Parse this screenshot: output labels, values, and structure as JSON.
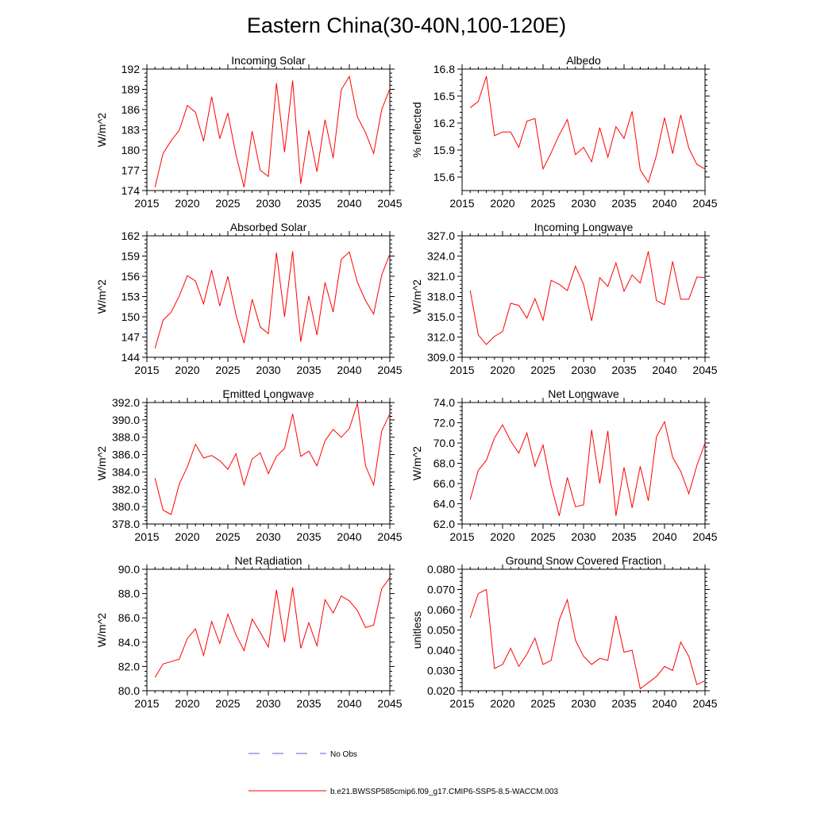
{
  "figure_title": "Eastern China(30-40N,100-120E)",
  "legend": {
    "obs_label": "No Obs",
    "obs_color": "#5566cc",
    "model_label": "b.e21.BWSSP585cmip6.f09_g17.CMIP6-SSP5-8.5-WACCM.003",
    "model_color": "#ff0000"
  },
  "chart_data": [
    {
      "type": "line",
      "title": "Incoming Solar",
      "xlabel": "",
      "ylabel": "W/m^2",
      "xlim": [
        2015,
        2045
      ],
      "ylim": [
        174,
        192
      ],
      "xticks": [
        2015,
        2020,
        2025,
        2030,
        2035,
        2040,
        2045
      ],
      "xticklabels": [
        "2015",
        "2020",
        "2025",
        "2030",
        "2035",
        "2040",
        "2045"
      ],
      "yticks": [
        174,
        177,
        180,
        183,
        186,
        189,
        192
      ],
      "yticklabels": [
        "174",
        "177",
        "180",
        "183",
        "186",
        "189",
        "192"
      ],
      "x": [
        2016,
        2017,
        2018,
        2019,
        2020,
        2021,
        2022,
        2023,
        2024,
        2025,
        2026,
        2027,
        2028,
        2029,
        2030,
        2031,
        2032,
        2033,
        2034,
        2035,
        2036,
        2037,
        2038,
        2039,
        2040,
        2041,
        2042,
        2043,
        2044,
        2045
      ],
      "series": [
        {
          "name": "b.e21.BWSSP585cmip6.f09_g17.CMIP6-SSP5-8.5-WACCM.003",
          "values": [
            174.5,
            179.5,
            181.4,
            182.9,
            186.6,
            185.6,
            181.3,
            187.9,
            181.7,
            185.5,
            179.3,
            174.5,
            182.8,
            177.0,
            176.1,
            189.9,
            179.7,
            190.3,
            175.0,
            182.9,
            176.8,
            184.5,
            178.8,
            188.9,
            190.9,
            184.9,
            182.6,
            179.5,
            186.0,
            189.1
          ]
        }
      ]
    },
    {
      "type": "line",
      "title": "Albedo",
      "xlabel": "",
      "ylabel": "% reflected",
      "xlim": [
        2015,
        2045
      ],
      "ylim": [
        15.45,
        16.8
      ],
      "xticks": [
        2015,
        2020,
        2025,
        2030,
        2035,
        2040,
        2045
      ],
      "xticklabels": [
        "2015",
        "2020",
        "2025",
        "2030",
        "2035",
        "2040",
        "2045"
      ],
      "yticks": [
        15.6,
        15.9,
        16.2,
        16.5,
        16.8
      ],
      "yticklabels": [
        "15.6",
        "15.9",
        "16.2",
        "16.5",
        "16.8"
      ],
      "x": [
        2016,
        2017,
        2018,
        2019,
        2020,
        2021,
        2022,
        2023,
        2024,
        2025,
        2026,
        2027,
        2028,
        2029,
        2030,
        2031,
        2032,
        2033,
        2034,
        2035,
        2036,
        2037,
        2038,
        2039,
        2040,
        2041,
        2042,
        2043,
        2044,
        2045
      ],
      "series": [
        {
          "name": "b.e21.BWSSP585cmip6.f09_g17.CMIP6-SSP5-8.5-WACCM.003",
          "values": [
            16.37,
            16.44,
            16.72,
            16.06,
            16.1,
            16.1,
            15.93,
            16.22,
            16.25,
            15.69,
            15.87,
            16.07,
            16.24,
            15.85,
            15.93,
            15.77,
            16.15,
            15.82,
            16.16,
            16.03,
            16.33,
            15.68,
            15.54,
            15.84,
            16.26,
            15.86,
            16.29,
            15.92,
            15.74,
            15.69
          ]
        }
      ]
    },
    {
      "type": "line",
      "title": "Absorbed Solar",
      "xlabel": "",
      "ylabel": "W/m^2",
      "xlim": [
        2015,
        2045
      ],
      "ylim": [
        144,
        162
      ],
      "xticks": [
        2015,
        2020,
        2025,
        2030,
        2035,
        2040,
        2045
      ],
      "xticklabels": [
        "2015",
        "2020",
        "2025",
        "2030",
        "2035",
        "2040",
        "2045"
      ],
      "yticks": [
        144,
        147,
        150,
        153,
        156,
        159,
        162
      ],
      "yticklabels": [
        "144",
        "147",
        "150",
        "153",
        "156",
        "159",
        "162"
      ],
      "x": [
        2016,
        2017,
        2018,
        2019,
        2020,
        2021,
        2022,
        2023,
        2024,
        2025,
        2026,
        2027,
        2028,
        2029,
        2030,
        2031,
        2032,
        2033,
        2034,
        2035,
        2036,
        2037,
        2038,
        2039,
        2040,
        2041,
        2042,
        2043,
        2044,
        2045
      ],
      "series": [
        {
          "name": "b.e21.BWSSP585cmip6.f09_g17.CMIP6-SSP5-8.5-WACCM.003",
          "values": [
            145.3,
            149.5,
            150.7,
            153.1,
            156.1,
            155.3,
            151.9,
            156.9,
            151.6,
            156.0,
            150.3,
            146.1,
            152.6,
            148.5,
            147.5,
            159.5,
            150.0,
            159.7,
            146.3,
            153.1,
            147.3,
            155.1,
            150.7,
            158.5,
            159.6,
            155.1,
            152.4,
            150.4,
            156.2,
            159.3
          ]
        }
      ]
    },
    {
      "type": "line",
      "title": "Incoming Longwave",
      "xlabel": "",
      "ylabel": "W/m^2",
      "xlim": [
        2015,
        2045
      ],
      "ylim": [
        309,
        327
      ],
      "xticks": [
        2015,
        2020,
        2025,
        2030,
        2035,
        2040,
        2045
      ],
      "xticklabels": [
        "2015",
        "2020",
        "2025",
        "2030",
        "2035",
        "2040",
        "2045"
      ],
      "yticks": [
        309,
        312,
        315,
        318,
        321,
        324,
        327
      ],
      "yticklabels": [
        "309.0",
        "312.0",
        "315.0",
        "318.0",
        "321.0",
        "324.0",
        "327.0"
      ],
      "x": [
        2016,
        2017,
        2018,
        2019,
        2020,
        2021,
        2022,
        2023,
        2024,
        2025,
        2026,
        2027,
        2028,
        2029,
        2030,
        2031,
        2032,
        2033,
        2034,
        2035,
        2036,
        2037,
        2038,
        2039,
        2040,
        2041,
        2042,
        2043,
        2044,
        2045
      ],
      "series": [
        {
          "name": "b.e21.BWSSP585cmip6.f09_g17.CMIP6-SSP5-8.5-WACCM.003",
          "values": [
            318.9,
            312.3,
            310.9,
            312.1,
            312.8,
            317.0,
            316.7,
            314.8,
            317.7,
            314.5,
            320.4,
            319.8,
            318.9,
            322.5,
            319.8,
            314.4,
            320.8,
            319.5,
            323.0,
            318.8,
            321.2,
            320.0,
            324.7,
            317.4,
            316.8,
            323.2,
            317.6,
            317.6,
            320.9,
            320.8
          ]
        }
      ]
    },
    {
      "type": "line",
      "title": "Emitted Longwave",
      "xlabel": "",
      "ylabel": "W/m^2",
      "xlim": [
        2015,
        2045
      ],
      "ylim": [
        378,
        392
      ],
      "xticks": [
        2015,
        2020,
        2025,
        2030,
        2035,
        2040,
        2045
      ],
      "xticklabels": [
        "2015",
        "2020",
        "2025",
        "2030",
        "2035",
        "2040",
        "2045"
      ],
      "yticks": [
        378,
        380,
        382,
        384,
        386,
        388,
        390,
        392
      ],
      "yticklabels": [
        "378.0",
        "380.0",
        "382.0",
        "384.0",
        "386.0",
        "388.0",
        "390.0",
        "392.0"
      ],
      "x": [
        2016,
        2017,
        2018,
        2019,
        2020,
        2021,
        2022,
        2023,
        2024,
        2025,
        2026,
        2027,
        2028,
        2029,
        2030,
        2031,
        2032,
        2033,
        2034,
        2035,
        2036,
        2037,
        2038,
        2039,
        2040,
        2041,
        2042,
        2043,
        2044,
        2045
      ],
      "series": [
        {
          "name": "b.e21.BWSSP585cmip6.f09_g17.CMIP6-SSP5-8.5-WACCM.003",
          "values": [
            383.3,
            379.6,
            379.1,
            382.6,
            384.6,
            387.2,
            385.6,
            385.9,
            385.3,
            384.3,
            386.1,
            382.5,
            385.5,
            386.2,
            383.8,
            385.8,
            386.7,
            390.7,
            385.8,
            386.4,
            384.7,
            387.6,
            388.9,
            388.0,
            389.0,
            391.9,
            384.7,
            382.5,
            388.7,
            390.7
          ]
        }
      ]
    },
    {
      "type": "line",
      "title": "Net Longwave",
      "xlabel": "",
      "ylabel": "W/m^2",
      "xlim": [
        2015,
        2045
      ],
      "ylim": [
        62,
        74
      ],
      "xticks": [
        2015,
        2020,
        2025,
        2030,
        2035,
        2040,
        2045
      ],
      "xticklabels": [
        "2015",
        "2020",
        "2025",
        "2030",
        "2035",
        "2040",
        "2045"
      ],
      "yticks": [
        62,
        64,
        66,
        68,
        70,
        72,
        74
      ],
      "yticklabels": [
        "62.0",
        "64.0",
        "66.0",
        "68.0",
        "70.0",
        "72.0",
        "74.0"
      ],
      "x": [
        2016,
        2017,
        2018,
        2019,
        2020,
        2021,
        2022,
        2023,
        2024,
        2025,
        2026,
        2027,
        2028,
        2029,
        2030,
        2031,
        2032,
        2033,
        2034,
        2035,
        2036,
        2037,
        2038,
        2039,
        2040,
        2041,
        2042,
        2043,
        2044,
        2045
      ],
      "series": [
        {
          "name": "b.e21.BWSSP585cmip6.f09_g17.CMIP6-SSP5-8.5-WACCM.003",
          "values": [
            64.4,
            67.3,
            68.3,
            70.5,
            71.8,
            70.2,
            69.0,
            71.0,
            67.7,
            69.8,
            65.8,
            62.8,
            66.6,
            63.7,
            63.9,
            71.3,
            66.0,
            71.2,
            62.8,
            67.6,
            63.6,
            67.7,
            64.3,
            70.6,
            72.1,
            68.6,
            67.2,
            65.0,
            67.8,
            70.0
          ]
        }
      ]
    },
    {
      "type": "line",
      "title": "Net Radiation",
      "xlabel": "",
      "ylabel": "W/m^2",
      "xlim": [
        2015,
        2045
      ],
      "ylim": [
        80,
        90
      ],
      "xticks": [
        2015,
        2020,
        2025,
        2030,
        2035,
        2040,
        2045
      ],
      "xticklabels": [
        "2015",
        "2020",
        "2025",
        "2030",
        "2035",
        "2040",
        "2045"
      ],
      "yticks": [
        80,
        82,
        84,
        86,
        88,
        90
      ],
      "yticklabels": [
        "80.0",
        "82.0",
        "84.0",
        "86.0",
        "88.0",
        "90.0"
      ],
      "x": [
        2016,
        2017,
        2018,
        2019,
        2020,
        2021,
        2022,
        2023,
        2024,
        2025,
        2026,
        2027,
        2028,
        2029,
        2030,
        2031,
        2032,
        2033,
        2034,
        2035,
        2036,
        2037,
        2038,
        2039,
        2040,
        2041,
        2042,
        2043,
        2044,
        2045
      ],
      "series": [
        {
          "name": "b.e21.BWSSP585cmip6.f09_g17.CMIP6-SSP5-8.5-WACCM.003",
          "values": [
            81.1,
            82.2,
            82.4,
            82.6,
            84.3,
            85.1,
            82.9,
            85.7,
            83.9,
            86.3,
            84.6,
            83.3,
            85.9,
            84.8,
            83.6,
            88.3,
            84.0,
            88.5,
            83.5,
            85.6,
            83.7,
            87.5,
            86.4,
            87.8,
            87.4,
            86.6,
            85.2,
            85.4,
            88.4,
            89.3
          ]
        }
      ]
    },
    {
      "type": "line",
      "title": "Ground Snow Covered Fraction",
      "xlabel": "",
      "ylabel": "unitless",
      "xlim": [
        2015,
        2045
      ],
      "ylim": [
        0.02,
        0.08
      ],
      "xticks": [
        2015,
        2020,
        2025,
        2030,
        2035,
        2040,
        2045
      ],
      "xticklabels": [
        "2015",
        "2020",
        "2025",
        "2030",
        "2035",
        "2040",
        "2045"
      ],
      "yticks": [
        0.02,
        0.03,
        0.04,
        0.05,
        0.06,
        0.07,
        0.08
      ],
      "yticklabels": [
        "0.020",
        "0.030",
        "0.040",
        "0.050",
        "0.060",
        "0.070",
        "0.080"
      ],
      "x": [
        2016,
        2017,
        2018,
        2019,
        2020,
        2021,
        2022,
        2023,
        2024,
        2025,
        2026,
        2027,
        2028,
        2029,
        2030,
        2031,
        2032,
        2033,
        2034,
        2035,
        2036,
        2037,
        2038,
        2039,
        2040,
        2041,
        2042,
        2043,
        2044,
        2045
      ],
      "series": [
        {
          "name": "b.e21.BWSSP585cmip6.f09_g17.CMIP6-SSP5-8.5-WACCM.003",
          "values": [
            0.056,
            0.068,
            0.07,
            0.031,
            0.033,
            0.041,
            0.032,
            0.038,
            0.046,
            0.033,
            0.035,
            0.055,
            0.065,
            0.045,
            0.037,
            0.033,
            0.036,
            0.035,
            0.057,
            0.039,
            0.04,
            0.021,
            0.024,
            0.027,
            0.032,
            0.03,
            0.044,
            0.037,
            0.023,
            0.025
          ]
        }
      ]
    }
  ]
}
